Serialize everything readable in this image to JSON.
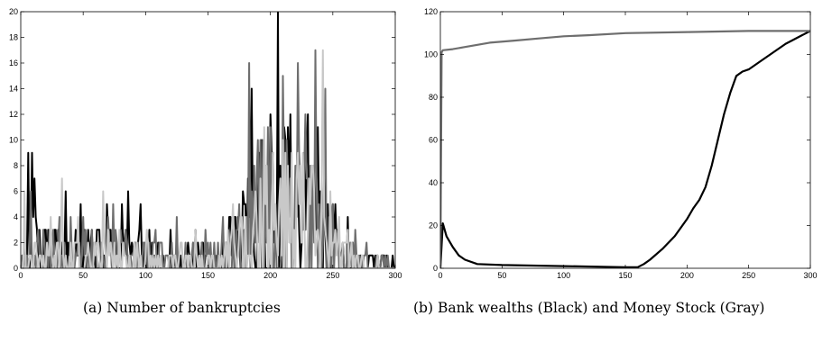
{
  "chart_data": [
    {
      "type": "line",
      "caption": "(a) Number of bankruptcies",
      "xlim": [
        0,
        300
      ],
      "ylim": [
        0,
        20
      ],
      "xticks": [
        "0",
        "50",
        "100",
        "150",
        "200",
        "250",
        "300"
      ],
      "yticks": [
        "0",
        "2",
        "4",
        "6",
        "8",
        "10",
        "12",
        "14",
        "16",
        "18",
        "20"
      ],
      "grid": false,
      "series": [
        {
          "color": "#000000",
          "style": "noisy",
          "seed": 11,
          "anchors": [
            [
              0,
              1
            ],
            [
              8,
              4
            ],
            [
              10,
              7
            ],
            [
              15,
              2
            ],
            [
              35,
              3
            ],
            [
              45,
              2
            ],
            [
              60,
              2
            ],
            [
              80,
              3
            ],
            [
              90,
              2
            ],
            [
              100,
              2
            ],
            [
              115,
              1
            ],
            [
              140,
              1
            ],
            [
              160,
              1
            ],
            [
              165,
              2
            ],
            [
              175,
              3
            ],
            [
              185,
              5
            ],
            [
              195,
              7
            ],
            [
              205,
              8
            ],
            [
              215,
              7
            ],
            [
              225,
              6
            ],
            [
              235,
              5
            ],
            [
              245,
              4
            ],
            [
              255,
              2
            ],
            [
              270,
              1
            ],
            [
              290,
              0.5
            ],
            [
              300,
              0.3
            ]
          ],
          "peaks": [
            [
              6,
              9
            ],
            [
              9,
              9
            ],
            [
              36,
              6
            ],
            [
              48,
              5
            ],
            [
              69,
              5
            ],
            [
              86,
              6
            ],
            [
              96,
              5
            ],
            [
              120,
              3
            ],
            [
              140,
              3
            ],
            [
              167,
              4
            ],
            [
              178,
              6
            ],
            [
              185,
              14
            ],
            [
              193,
              10
            ],
            [
              200,
              12
            ],
            [
              206,
              20
            ],
            [
              216,
              12
            ],
            [
              230,
              12
            ],
            [
              238,
              11
            ],
            [
              243,
              8
            ],
            [
              252,
              5
            ],
            [
              262,
              4
            ]
          ]
        },
        {
          "color": "#6e6e6e",
          "style": "noisy",
          "seed": 23,
          "anchors": [
            [
              0,
              1
            ],
            [
              15,
              2
            ],
            [
              35,
              2
            ],
            [
              55,
              2
            ],
            [
              75,
              2
            ],
            [
              95,
              1.5
            ],
            [
              115,
              1
            ],
            [
              140,
              1.5
            ],
            [
              160,
              1.5
            ],
            [
              165,
              2
            ],
            [
              175,
              3
            ],
            [
              185,
              5
            ],
            [
              195,
              7
            ],
            [
              205,
              7
            ],
            [
              215,
              8
            ],
            [
              225,
              7
            ],
            [
              235,
              6
            ],
            [
              245,
              4
            ],
            [
              255,
              2
            ],
            [
              270,
              1
            ],
            [
              290,
              0.5
            ],
            [
              300,
              0.3
            ]
          ],
          "peaks": [
            [
              8,
              6
            ],
            [
              31,
              4
            ],
            [
              40,
              4
            ],
            [
              50,
              4
            ],
            [
              70,
              4
            ],
            [
              74,
              5
            ],
            [
              108,
              3
            ],
            [
              125,
              4
            ],
            [
              162,
              4
            ],
            [
              175,
              5
            ],
            [
              183,
              16
            ],
            [
              190,
              10
            ],
            [
              198,
              11
            ],
            [
              210,
              15
            ],
            [
              222,
              16
            ],
            [
              228,
              12
            ],
            [
              236,
              17
            ],
            [
              244,
              14
            ],
            [
              250,
              5
            ],
            [
              268,
              3
            ],
            [
              277,
              2
            ]
          ]
        },
        {
          "color": "#c8c8c8",
          "style": "noisy",
          "seed": 37,
          "anchors": [
            [
              0,
              1
            ],
            [
              15,
              1.5
            ],
            [
              35,
              1.5
            ],
            [
              55,
              1.5
            ],
            [
              75,
              1.5
            ],
            [
              95,
              1
            ],
            [
              115,
              1
            ],
            [
              140,
              1
            ],
            [
              160,
              1
            ],
            [
              170,
              2
            ],
            [
              180,
              3
            ],
            [
              190,
              4
            ],
            [
              200,
              5
            ],
            [
              210,
              6
            ],
            [
              220,
              6
            ],
            [
              230,
              5
            ],
            [
              240,
              4
            ],
            [
              250,
              3
            ],
            [
              260,
              1.5
            ],
            [
              275,
              0.5
            ],
            [
              300,
              0.2
            ]
          ],
          "peaks": [
            [
              3,
              6
            ],
            [
              24,
              4
            ],
            [
              33,
              7
            ],
            [
              46,
              4
            ],
            [
              66,
              6
            ],
            [
              79,
              3
            ],
            [
              101,
              3
            ],
            [
              140,
              3
            ],
            [
              170,
              5
            ],
            [
              188,
              6
            ],
            [
              195,
              11
            ],
            [
              202,
              9
            ],
            [
              212,
              9
            ],
            [
              226,
              9
            ],
            [
              234,
              8
            ],
            [
              242,
              17
            ],
            [
              248,
              6
            ],
            [
              262,
              3
            ]
          ]
        }
      ]
    },
    {
      "type": "line",
      "caption": "(b) Bank wealths (Black) and Money Stock (Gray)",
      "xlim": [
        0,
        300
      ],
      "ylim": [
        0,
        120
      ],
      "xticks": [
        "0",
        "50",
        "100",
        "150",
        "200",
        "250",
        "300"
      ],
      "yticks": [
        "0",
        "20",
        "40",
        "60",
        "80",
        "100",
        "120"
      ],
      "grid": false,
      "series": [
        {
          "name": "Bank wealths",
          "color": "#000000",
          "style": "smooth",
          "points": [
            [
              0,
              0
            ],
            [
              2,
              21
            ],
            [
              5,
              15
            ],
            [
              10,
              10
            ],
            [
              15,
              6
            ],
            [
              20,
              4
            ],
            [
              30,
              2
            ],
            [
              50,
              1.5
            ],
            [
              100,
              1
            ],
            [
              150,
              0.5
            ],
            [
              160,
              0.5
            ],
            [
              165,
              2
            ],
            [
              170,
              4
            ],
            [
              180,
              9
            ],
            [
              190,
              15
            ],
            [
              200,
              23
            ],
            [
              205,
              28
            ],
            [
              210,
              32
            ],
            [
              215,
              38
            ],
            [
              220,
              48
            ],
            [
              225,
              60
            ],
            [
              230,
              72
            ],
            [
              235,
              82
            ],
            [
              240,
              90
            ],
            [
              245,
              92
            ],
            [
              250,
              93
            ],
            [
              260,
              97
            ],
            [
              270,
              101
            ],
            [
              280,
              105
            ],
            [
              290,
              108
            ],
            [
              300,
              111
            ]
          ]
        },
        {
          "name": "Money Stock",
          "color": "#6e6e6e",
          "style": "smooth",
          "points": [
            [
              0,
              0
            ],
            [
              1,
              101
            ],
            [
              2,
              102
            ],
            [
              10,
              102.5
            ],
            [
              20,
              103.5
            ],
            [
              30,
              104.5
            ],
            [
              40,
              105.5
            ],
            [
              60,
              106.5
            ],
            [
              80,
              107.5
            ],
            [
              100,
              108.5
            ],
            [
              120,
              109
            ],
            [
              150,
              110
            ],
            [
              200,
              110.5
            ],
            [
              250,
              111
            ],
            [
              300,
              111
            ]
          ]
        }
      ]
    }
  ]
}
